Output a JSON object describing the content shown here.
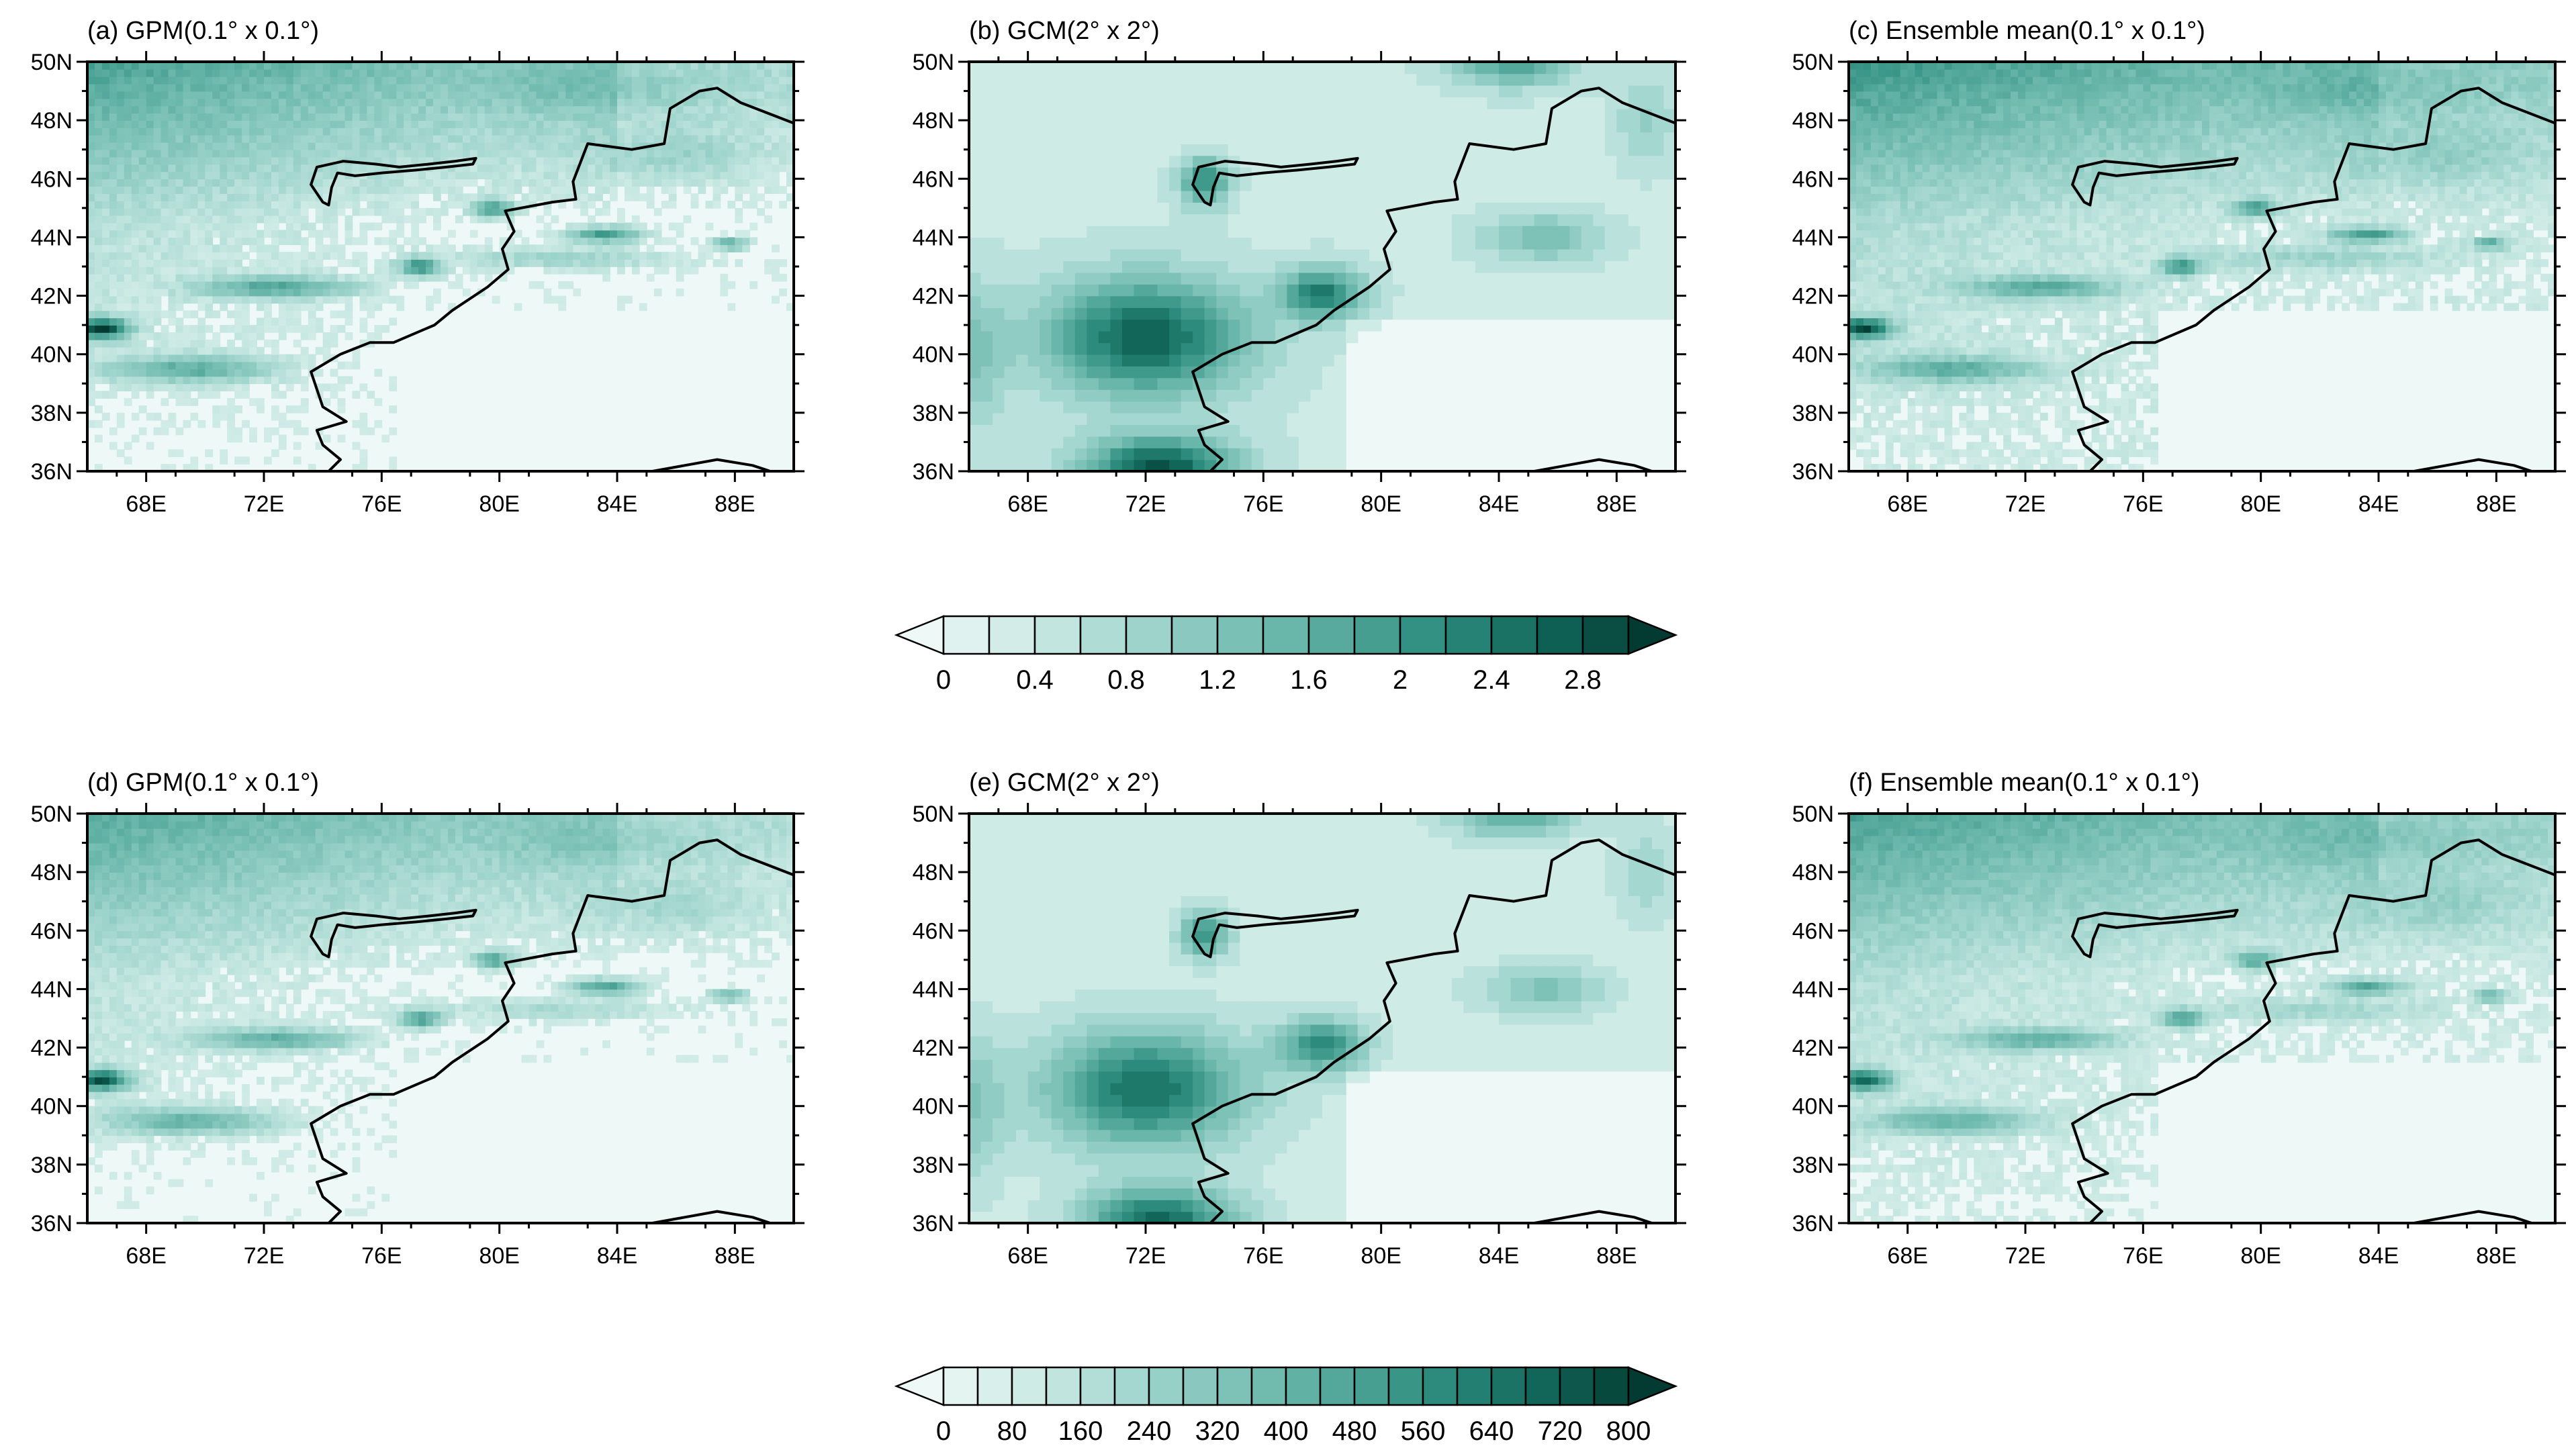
{
  "figure": {
    "panels": [
      {
        "id": "a",
        "title": "(a) GPM(0.1° x 0.1°)",
        "kind": "gpm",
        "scale": "top"
      },
      {
        "id": "b",
        "title": "(b) GCM(2° x 2°)",
        "kind": "gcm",
        "scale": "top"
      },
      {
        "id": "c",
        "title": "(c) Ensemble mean(0.1° x 0.1°)",
        "kind": "ens",
        "scale": "top"
      },
      {
        "id": "d",
        "title": "(d) GPM(0.1° x 0.1°)",
        "kind": "gpm",
        "scale": "bottom"
      },
      {
        "id": "e",
        "title": "(e) GCM(2° x 2°)",
        "kind": "gcm",
        "scale": "bottom"
      },
      {
        "id": "f",
        "title": "(f) Ensemble mean(0.1° x 0.1°)",
        "kind": "ens",
        "scale": "bottom"
      }
    ],
    "lon_ticks": [
      "68E",
      "72E",
      "76E",
      "80E",
      "84E",
      "88E"
    ],
    "lat_ticks": [
      "50N",
      "48N",
      "46N",
      "44N",
      "42N",
      "40N",
      "38N",
      "36N"
    ],
    "extent": {
      "lon": [
        66,
        90
      ],
      "lat": [
        36,
        50
      ]
    },
    "colorbars": [
      {
        "id": "top",
        "levels": [
          0,
          0.2,
          0.4,
          0.6,
          0.8,
          1.0,
          1.2,
          1.4,
          1.6,
          1.8,
          2.0,
          2.2,
          2.4,
          2.6,
          2.8,
          3.0
        ],
        "labels": [
          "0",
          "0.4",
          "0.8",
          "1.2",
          "1.6",
          "2",
          "2.4",
          "2.8"
        ]
      },
      {
        "id": "bottom",
        "levels": [
          0,
          40,
          80,
          120,
          160,
          200,
          240,
          280,
          320,
          360,
          400,
          440,
          480,
          520,
          560,
          600,
          640,
          680,
          720,
          760,
          800
        ],
        "labels": [
          "0",
          "80",
          "160",
          "240",
          "320",
          "400",
          "480",
          "560",
          "640",
          "720",
          "800"
        ]
      }
    ],
    "colors": {
      "low": "#eef8f6",
      "high": "#003d33",
      "border": "#000000"
    }
  }
}
